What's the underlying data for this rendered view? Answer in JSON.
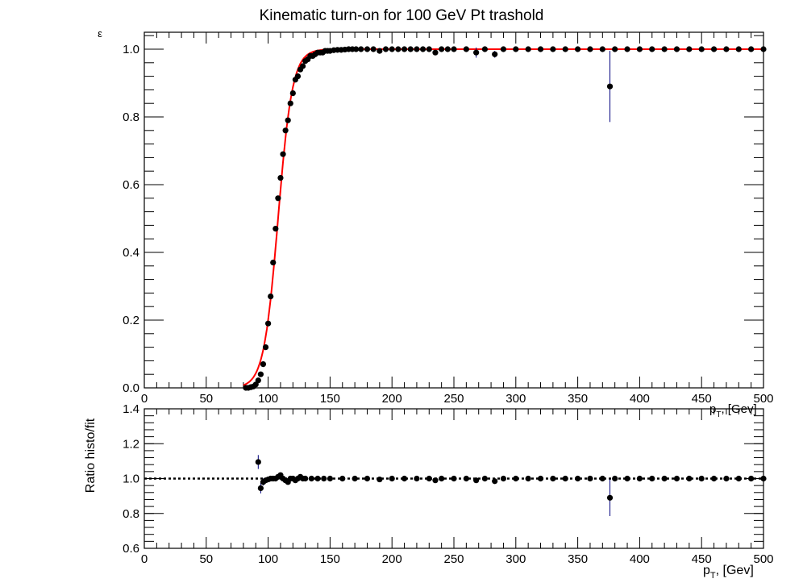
{
  "chart_data": [
    {
      "type": "scatter",
      "title": "Kinematic turn-on for 100 GeV Pt trashold",
      "xlabel": "p_T, [Gev]",
      "ylabel": "ε",
      "xlim": [
        0,
        500
      ],
      "ylim": [
        0,
        1.05
      ],
      "x_ticks": [
        "0",
        "50",
        "100",
        "150",
        "200",
        "250",
        "300",
        "350",
        "400",
        "450",
        "500"
      ],
      "y_ticks": [
        "0.0",
        "0.2",
        "0.4",
        "0.6",
        "0.8",
        "1.0"
      ],
      "grid": false,
      "colors": {
        "points": "#000000",
        "fit": "#ff0000",
        "error_bars": "#00007f"
      },
      "fit": {
        "function": "sigmoid",
        "midpoint": 108,
        "width": 5.8
      },
      "series": [
        {
          "x": [
            82,
            84,
            86,
            88,
            90,
            92,
            94,
            96,
            98,
            100,
            102,
            104,
            106,
            108,
            110,
            112,
            114,
            116,
            118,
            120,
            122,
            124,
            126,
            128,
            130,
            132,
            134,
            136,
            138,
            140,
            142,
            144,
            146,
            148,
            150,
            153,
            156,
            159,
            162,
            165,
            168,
            171,
            175,
            180,
            185,
            190,
            195,
            200,
            205,
            210,
            215,
            220,
            225,
            230,
            235,
            240,
            245,
            250,
            260,
            268,
            275,
            283,
            290,
            300,
            310,
            320,
            330,
            340,
            350,
            360,
            370,
            376,
            380,
            390,
            400,
            410,
            420,
            430,
            440,
            450,
            460,
            470,
            480,
            490,
            500
          ],
          "y": [
            0.0,
            0.0,
            0.002,
            0.004,
            0.01,
            0.022,
            0.04,
            0.07,
            0.12,
            0.19,
            0.27,
            0.37,
            0.47,
            0.56,
            0.62,
            0.69,
            0.76,
            0.79,
            0.84,
            0.87,
            0.91,
            0.92,
            0.94,
            0.95,
            0.965,
            0.97,
            0.98,
            0.98,
            0.985,
            0.99,
            0.99,
            0.99,
            0.995,
            0.995,
            0.995,
            0.997,
            0.998,
            0.998,
            0.999,
            1.0,
            1.0,
            1.0,
            1.0,
            1.0,
            1.0,
            0.995,
            1.0,
            1.0,
            1.0,
            1.0,
            1.0,
            1.0,
            1.0,
            1.0,
            0.99,
            1.0,
            1.0,
            1.0,
            1.0,
            0.99,
            1.0,
            0.985,
            1.0,
            1.0,
            1.0,
            1.0,
            1.0,
            1.0,
            1.0,
            1.0,
            1.0,
            0.89,
            1.0,
            1.0,
            1.0,
            1.0,
            1.0,
            1.0,
            1.0,
            1.0,
            1.0,
            1.0,
            1.0,
            1.0,
            1.0
          ],
          "err": [
            0,
            0,
            0,
            0,
            0,
            0,
            0,
            0,
            0,
            0,
            0,
            0,
            0,
            0,
            0,
            0,
            0,
            0,
            0,
            0,
            0,
            0,
            0,
            0,
            0,
            0,
            0,
            0,
            0,
            0,
            0,
            0,
            0,
            0,
            0,
            0,
            0,
            0,
            0,
            0,
            0,
            0,
            0,
            0,
            0,
            0,
            0,
            0,
            0,
            0,
            0,
            0,
            0,
            0,
            0,
            0,
            0,
            0,
            0,
            0.015,
            0,
            0.01,
            0,
            0,
            0,
            0,
            0,
            0,
            0,
            0,
            0,
            0.105,
            0,
            0,
            0,
            0,
            0,
            0,
            0,
            0,
            0,
            0,
            0,
            0,
            0
          ]
        }
      ]
    },
    {
      "type": "scatter",
      "title": "",
      "xlabel": "p_T, [Gev]",
      "ylabel": "Ratio histo/fit",
      "xlim": [
        0,
        500
      ],
      "ylim": [
        0.6,
        1.4
      ],
      "x_ticks": [
        "0",
        "50",
        "100",
        "150",
        "200",
        "250",
        "300",
        "350",
        "400",
        "450",
        "500"
      ],
      "y_ticks": [
        "0.6",
        "0.8",
        "1.0",
        "1.2",
        "1.4"
      ],
      "reference_line": 1.0,
      "grid": false,
      "series": [
        {
          "x": [
            92,
            94,
            96,
            98,
            100,
            102,
            104,
            106,
            108,
            110,
            112,
            114,
            116,
            118,
            120,
            122,
            124,
            126,
            128,
            130,
            135,
            140,
            145,
            150,
            160,
            170,
            180,
            190,
            200,
            210,
            220,
            230,
            235,
            240,
            250,
            260,
            268,
            275,
            283,
            290,
            300,
            310,
            320,
            330,
            340,
            350,
            360,
            370,
            376,
            380,
            390,
            400,
            410,
            420,
            430,
            440,
            450,
            460,
            470,
            480,
            490,
            500
          ],
          "y": [
            1.095,
            0.945,
            0.98,
            0.99,
            0.995,
            1.0,
            1.0,
            1.0,
            1.01,
            1.02,
            1.0,
            0.99,
            0.98,
            1.0,
            1.0,
            0.99,
            1.0,
            1.01,
            1.0,
            1.0,
            1.0,
            1.0,
            1.0,
            1.0,
            1.0,
            1.0,
            1.0,
            0.995,
            1.0,
            1.0,
            1.0,
            1.0,
            0.99,
            1.0,
            1.0,
            1.0,
            0.99,
            1.0,
            0.985,
            1.0,
            1.0,
            1.0,
            1.0,
            1.0,
            1.0,
            1.0,
            1.0,
            1.0,
            0.89,
            1.0,
            1.0,
            1.0,
            1.0,
            1.0,
            1.0,
            1.0,
            1.0,
            1.0,
            1.0,
            1.0,
            1.0,
            1.0
          ],
          "err": [
            0.04,
            0.03,
            0.02,
            0.01,
            0,
            0,
            0,
            0,
            0,
            0,
            0,
            0,
            0,
            0,
            0,
            0,
            0,
            0,
            0,
            0,
            0,
            0,
            0,
            0,
            0,
            0,
            0,
            0,
            0,
            0,
            0,
            0,
            0,
            0,
            0,
            0,
            0,
            0,
            0,
            0,
            0,
            0,
            0,
            0,
            0,
            0,
            0,
            0,
            0.105,
            0,
            0,
            0,
            0,
            0,
            0,
            0,
            0,
            0,
            0,
            0,
            0,
            0
          ]
        }
      ]
    }
  ]
}
